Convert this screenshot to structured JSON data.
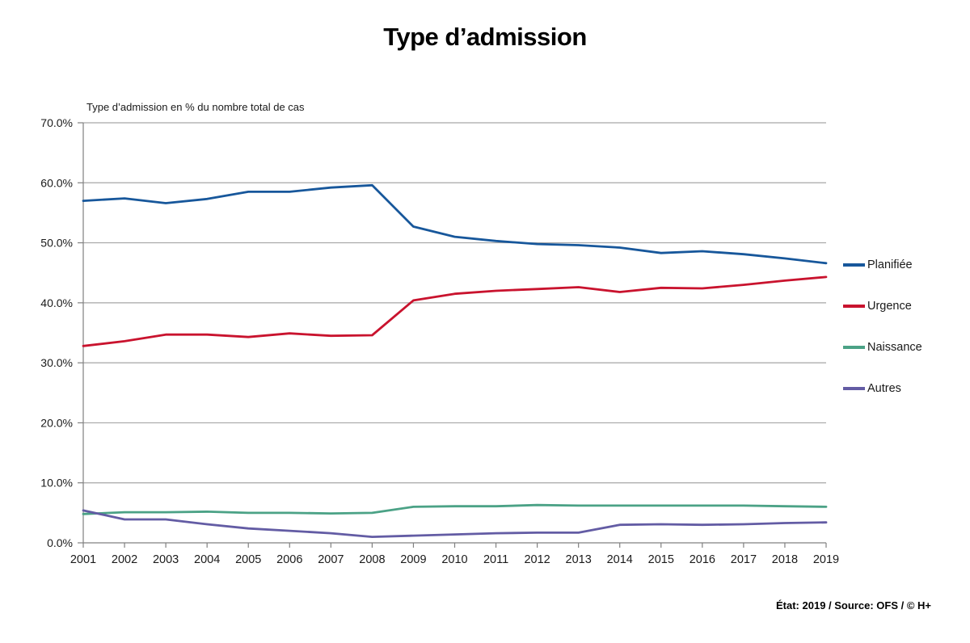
{
  "title": "Type d’admission",
  "footer": {
    "text": "État: 2019 / Source: OFS / © H+"
  },
  "colors": {
    "gridline": "#a6a6a6",
    "axis": "#808080",
    "tick_label": "#1a1a1a",
    "background": "#ffffff"
  },
  "chart_data": {
    "type": "line",
    "title": "Type d’admission",
    "axis_title": "Type d’admission en % du nombre total de cas",
    "xlabel": "",
    "ylabel": "Type d’admission en % du nombre total de cas",
    "ylim": [
      0,
      70
    ],
    "ytick_step": 10,
    "ytick_labels": [
      "0.0%",
      "10.0%",
      "20.0%",
      "30.0%",
      "40.0%",
      "50.0%",
      "60.0%",
      "70.0%"
    ],
    "grid": true,
    "legend_position": "right",
    "x": [
      "2001",
      "2002",
      "2003",
      "2004",
      "2005",
      "2006",
      "2007",
      "2008",
      "2009",
      "2010",
      "2011",
      "2012",
      "2013",
      "2014",
      "2015",
      "2016",
      "2017",
      "2018",
      "2019"
    ],
    "series": [
      {
        "name": "Planifiée",
        "color": "#17579b",
        "values": [
          57.0,
          57.4,
          56.6,
          57.3,
          58.5,
          58.5,
          59.2,
          59.6,
          52.7,
          51.0,
          50.3,
          49.8,
          49.6,
          49.2,
          48.3,
          48.6,
          48.1,
          47.4,
          46.6
        ]
      },
      {
        "name": "Urgence",
        "color": "#c9132e",
        "values": [
          32.8,
          33.6,
          34.7,
          34.7,
          34.3,
          34.9,
          34.5,
          34.6,
          40.4,
          41.5,
          42.0,
          42.3,
          42.6,
          41.8,
          42.5,
          42.4,
          43.0,
          43.7,
          44.3
        ]
      },
      {
        "name": "Naissance",
        "color": "#4ba286",
        "values": [
          4.8,
          5.1,
          5.1,
          5.2,
          5.0,
          5.0,
          4.9,
          5.0,
          6.0,
          6.1,
          6.1,
          6.3,
          6.2,
          6.2,
          6.2,
          6.2,
          6.2,
          6.1,
          6.0
        ]
      },
      {
        "name": "Autres",
        "color": "#635ca4",
        "values": [
          5.4,
          3.9,
          3.9,
          3.1,
          2.4,
          2.0,
          1.6,
          1.0,
          1.2,
          1.4,
          1.6,
          1.7,
          1.7,
          3.0,
          3.1,
          3.0,
          3.1,
          3.3,
          3.4
        ]
      }
    ]
  }
}
